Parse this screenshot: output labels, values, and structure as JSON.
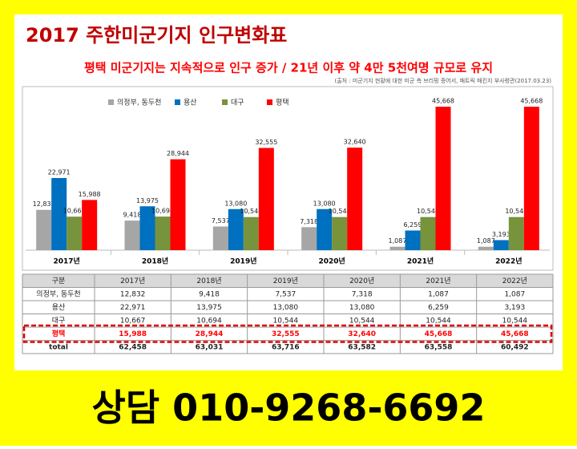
{
  "chart_data": {
    "type": "bar",
    "title": "2017 주한미군기지 인구변화표",
    "subtitle": "평택 미군기지는 지속적으로 인구 증가 / 21년 이후 약 4만 5천여명 규모로 유지",
    "source": "(출처 : 미군기지 현황에 대한 미군 측 브리핑 증어서, 패트릭 매킨지 부사령관(2017.03.23)",
    "categories": [
      "2017년",
      "2018년",
      "2019년",
      "2020년",
      "2021년",
      "2022년"
    ],
    "series": [
      {
        "name": "의정부, 동두천",
        "color": "#a6a6a6",
        "values": [
          12832,
          9418,
          7537,
          7318,
          1087,
          1087
        ],
        "value_labels": [
          "12,832",
          "9,418",
          "7,537",
          "7,318",
          "1,087",
          "1,087"
        ]
      },
      {
        "name": "용산",
        "color": "#0070c0",
        "values": [
          22971,
          13975,
          13080,
          13080,
          6259,
          3193
        ],
        "value_labels": [
          "22,971",
          "13,975",
          "13,080",
          "13,080",
          "6,259",
          "3,193"
        ]
      },
      {
        "name": "대구",
        "color": "#77933c",
        "values": [
          10667,
          10694,
          10544,
          10544,
          10544,
          10544
        ],
        "value_labels": [
          "10,667",
          "10,694",
          "10,544",
          "10,544",
          "10,544",
          "10,544"
        ]
      },
      {
        "name": "평택",
        "color": "#ff0000",
        "values": [
          15988,
          28944,
          32555,
          32640,
          45668,
          45668
        ],
        "value_labels": [
          "15,988",
          "28,944",
          "32,555",
          "32,640",
          "45,668",
          "45,668"
        ]
      }
    ],
    "ylim": [
      0,
      48000
    ],
    "table_header": "구분",
    "totals_name": "total",
    "totals": [
      62458,
      63031,
      63716,
      63582,
      63558,
      60492
    ],
    "totals_labels": [
      "62,458",
      "63,031",
      "63,716",
      "63,582",
      "63,558",
      "60,492"
    ]
  },
  "footer": "상담 010-9268-6692"
}
